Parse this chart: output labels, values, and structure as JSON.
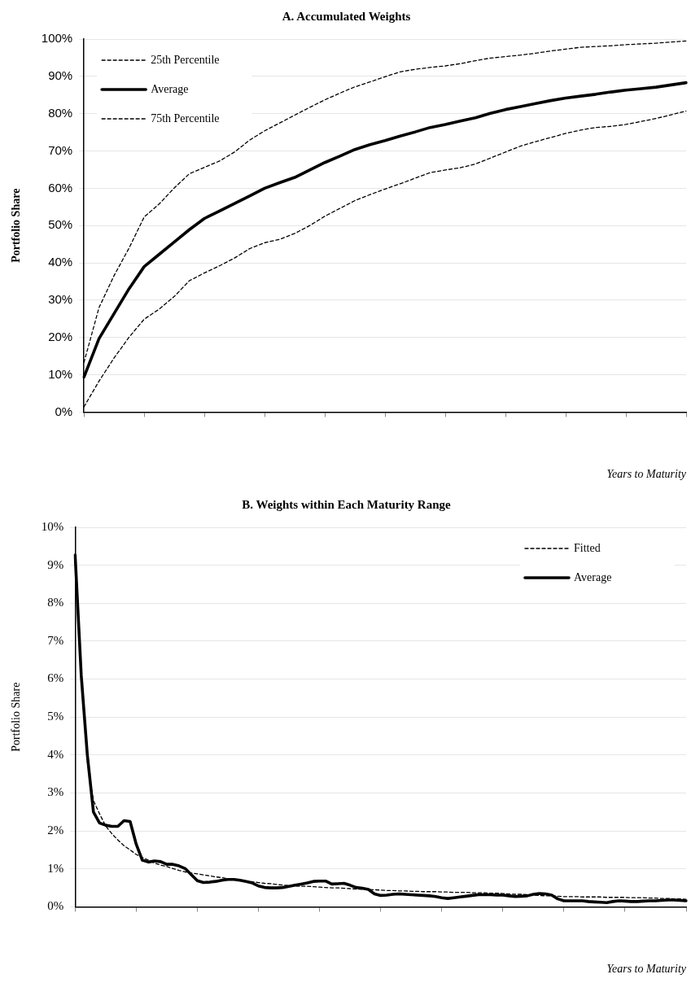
{
  "chart_data": [
    {
      "type": "line",
      "title": "A. Accumulated Weights",
      "xlabel": "Years to Maturity",
      "ylabel": "Portfolio Share",
      "categories": [
        null,
        null,
        null,
        null,
        null,
        null,
        null,
        null,
        null,
        null,
        null,
        null,
        null,
        null,
        null,
        null,
        null,
        null,
        null,
        null,
        null,
        null,
        null,
        null,
        null,
        null,
        null,
        null,
        null,
        null,
        null,
        null,
        null,
        null,
        null,
        null,
        null,
        null,
        null,
        null,
        null
      ],
      "ylim": [
        0,
        100
      ],
      "yticks": [
        {
          "value": 0,
          "label": "0%"
        },
        {
          "value": 10,
          "label": "10%"
        },
        {
          "value": 20,
          "label": "20%"
        },
        {
          "value": 30,
          "label": "30%"
        },
        {
          "value": 40,
          "label": "40%"
        },
        {
          "value": 50,
          "label": "50%"
        },
        {
          "value": 60,
          "label": "60%"
        },
        {
          "value": 70,
          "label": "70%"
        },
        {
          "value": 80,
          "label": "80%"
        },
        {
          "value": 90,
          "label": "90%"
        },
        {
          "value": 100,
          "label": "100%"
        }
      ],
      "grid": "y",
      "legend": "top left",
      "series": [
        {
          "name": "25th Percentile",
          "color": "#000000",
          "line_style": "dashed",
          "values": [
            13.3,
            28.0,
            36.6,
            44.0,
            52.3,
            55.8,
            60.1,
            63.9,
            65.6,
            67.3,
            69.7,
            72.9,
            75.4,
            77.5,
            79.6,
            81.7,
            83.7,
            85.5,
            87.2,
            88.5,
            89.9,
            91.2,
            91.9,
            92.4,
            92.8,
            93.4,
            94.2,
            94.9,
            95.3,
            95.7,
            96.2,
            96.8,
            97.3,
            97.8,
            98.0,
            98.2,
            98.5,
            98.7,
            98.9,
            99.2,
            99.5
          ]
        },
        {
          "name": "Average",
          "color": "#000000",
          "line_style": "solid",
          "values": [
            9.4,
            19.7,
            26.4,
            33.1,
            39.0,
            42.3,
            45.6,
            48.9,
            51.9,
            53.9,
            55.9,
            57.9,
            60.0,
            61.5,
            62.9,
            64.9,
            66.9,
            68.6,
            70.4,
            71.7,
            72.8,
            74.0,
            75.1,
            76.3,
            77.1,
            78.0,
            78.9,
            80.1,
            81.1,
            81.9,
            82.7,
            83.5,
            84.2,
            84.7,
            85.2,
            85.8,
            86.3,
            86.7,
            87.1,
            87.7,
            88.3
          ]
        },
        {
          "name": "75th Percentile",
          "color": "#000000",
          "line_style": "dashed",
          "values": [
            1.4,
            8.3,
            14.5,
            20.1,
            24.9,
            27.6,
            31.0,
            35.2,
            37.3,
            39.2,
            41.3,
            43.8,
            45.4,
            46.3,
            47.9,
            50.0,
            52.5,
            54.6,
            56.7,
            58.3,
            59.8,
            61.2,
            62.7,
            64.2,
            64.9,
            65.5,
            66.5,
            68.1,
            69.7,
            71.3,
            72.5,
            73.6,
            74.7,
            75.6,
            76.3,
            76.6,
            77.1,
            77.9,
            78.7,
            79.7,
            80.7
          ]
        }
      ]
    },
    {
      "type": "line",
      "title": "B. Weights within Each Maturity Range",
      "xlabel": "Years to Maturity",
      "ylabel": "Portfolio Share",
      "categories": [
        null,
        null,
        null,
        null,
        null,
        null,
        null,
        null,
        null,
        null,
        null,
        null,
        null,
        null,
        null,
        null,
        null,
        null,
        null,
        null,
        null,
        null,
        null,
        null,
        null,
        null,
        null,
        null,
        null,
        null,
        null,
        null,
        null,
        null,
        null,
        null,
        null,
        null,
        null,
        null,
        null,
        null,
        null,
        null,
        null,
        null,
        null,
        null,
        null,
        null,
        null,
        null,
        null,
        null,
        null,
        null,
        null,
        null,
        null,
        null,
        null,
        null,
        null,
        null,
        null,
        null,
        null,
        null,
        null,
        null,
        null,
        null,
        null,
        null,
        null,
        null,
        null,
        null,
        null,
        null,
        null,
        null,
        null,
        null,
        null,
        null,
        null,
        null,
        null,
        null,
        null,
        null,
        null,
        null,
        null,
        null,
        null,
        null,
        null,
        null,
        null
      ],
      "ylim": [
        0,
        10
      ],
      "yticks": [
        {
          "value": 0,
          "label": "0%"
        },
        {
          "value": 1,
          "label": "1%"
        },
        {
          "value": 2,
          "label": "2%"
        },
        {
          "value": 3,
          "label": "3%"
        },
        {
          "value": 4,
          "label": "4%"
        },
        {
          "value": 5,
          "label": "5%"
        },
        {
          "value": 6,
          "label": "6%"
        },
        {
          "value": 7,
          "label": "7%"
        },
        {
          "value": 8,
          "label": "8%"
        },
        {
          "value": 9,
          "label": "9%"
        },
        {
          "value": 10,
          "label": "10%"
        }
      ],
      "grid": "y",
      "legend": "top right",
      "series": [
        {
          "name": "Fitted",
          "color": "#000000",
          "line_style": "dashed",
          "values": [
            null,
            null,
            3.82,
            2.8,
            2.45,
            2.13,
            1.93,
            1.76,
            1.61,
            1.5,
            1.38,
            1.3,
            1.23,
            1.15,
            1.1,
            1.06,
            1.01,
            0.96,
            0.92,
            0.89,
            0.87,
            0.84,
            0.82,
            0.79,
            0.77,
            0.74,
            0.72,
            0.7,
            0.68,
            0.66,
            0.64,
            0.62,
            0.61,
            0.59,
            0.57,
            0.56,
            0.55,
            0.54,
            0.54,
            0.53,
            0.52,
            0.51,
            0.5,
            0.5,
            0.49,
            0.48,
            0.47,
            0.46,
            0.46,
            0.45,
            0.44,
            0.43,
            0.43,
            0.42,
            0.42,
            0.41,
            0.41,
            0.4,
            0.4,
            0.4,
            0.39,
            0.39,
            0.38,
            0.38,
            0.38,
            0.37,
            0.37,
            0.37,
            0.36,
            0.36,
            0.35,
            0.34,
            0.33,
            0.33,
            0.32,
            0.31,
            0.3,
            0.29,
            0.29,
            0.28,
            0.27,
            0.27,
            0.27,
            0.26,
            0.26,
            0.26,
            0.26,
            0.25,
            0.25,
            0.25,
            0.25,
            0.24,
            0.24,
            0.24,
            0.23,
            0.23,
            0.22,
            0.22,
            0.21,
            0.21,
            0.2
          ]
        },
        {
          "name": "Average",
          "color": "#000000",
          "line_style": "solid",
          "values": [
            9.27,
            6.1,
            4.0,
            2.5,
            2.21,
            2.15,
            2.12,
            2.12,
            2.27,
            2.25,
            1.65,
            1.23,
            1.18,
            1.21,
            1.19,
            1.12,
            1.12,
            1.08,
            1.01,
            0.85,
            0.69,
            0.64,
            0.65,
            0.67,
            0.7,
            0.72,
            0.72,
            0.7,
            0.67,
            0.63,
            0.55,
            0.51,
            0.5,
            0.5,
            0.51,
            0.54,
            0.57,
            0.6,
            0.63,
            0.67,
            0.68,
            0.68,
            0.6,
            0.61,
            0.62,
            0.57,
            0.51,
            0.49,
            0.46,
            0.34,
            0.3,
            0.31,
            0.33,
            0.34,
            0.33,
            0.32,
            0.31,
            0.3,
            0.29,
            0.27,
            0.24,
            0.22,
            0.24,
            0.26,
            0.28,
            0.3,
            0.32,
            0.32,
            0.32,
            0.31,
            0.31,
            0.29,
            0.27,
            0.28,
            0.29,
            0.33,
            0.35,
            0.34,
            0.31,
            0.21,
            0.16,
            0.16,
            0.16,
            0.16,
            0.14,
            0.13,
            0.12,
            0.11,
            0.14,
            0.16,
            0.15,
            0.14,
            0.14,
            0.15,
            0.16,
            0.16,
            0.17,
            0.18,
            0.18,
            0.17,
            0.16
          ]
        }
      ]
    }
  ]
}
